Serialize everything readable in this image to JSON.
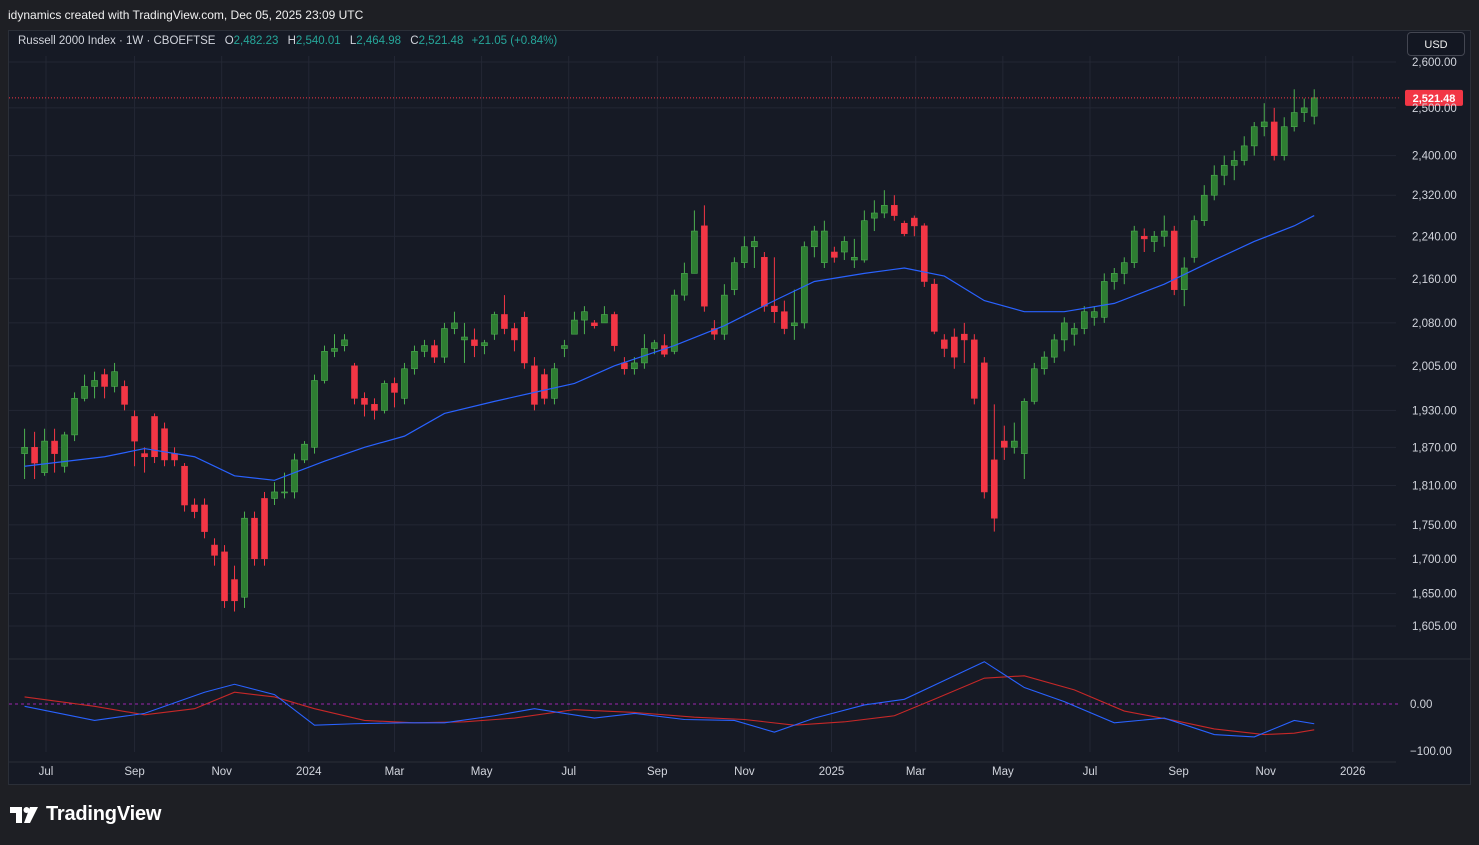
{
  "header": {
    "attribution": "idynamics created with TradingView.com, Dec 05, 2025 23:09 UTC"
  },
  "legend": {
    "symbol": "Russell 2000 Index · 1W · CBOEFTSE",
    "o_label": "O",
    "o": "2,482.23",
    "h_label": "H",
    "h": "2,540.01",
    "l_label": "L",
    "l": "2,464.98",
    "c_label": "C",
    "c": "2,521.48",
    "change": "+21.05 (+0.84%)"
  },
  "currency_button": "USD",
  "last_price_label": "2,521.48",
  "logo_text": "TradingView",
  "colors": {
    "background": "#161a25",
    "up": "#2e7d32",
    "down": "#f23645",
    "ma": "#2962ff",
    "osc_fast": "#2962ff",
    "osc_slow": "#c62828",
    "price_line": "#f23645",
    "text": "#d1d4dc"
  },
  "chart_data": {
    "type": "candlestick",
    "interval": "1W",
    "y_axis": {
      "scale": "log",
      "ticks": [
        "2,600.00",
        "2,500.00",
        "2,400.00",
        "2,320.00",
        "2,240.00",
        "2,160.00",
        "2,080.00",
        "2,005.00",
        "1,930.00",
        "1,870.00",
        "1,810.00",
        "1,750.00",
        "1,700.00",
        "1,650.00",
        "1,605.00"
      ]
    },
    "x_axis": {
      "ticks": [
        "Jul",
        "Sep",
        "Nov",
        "2024",
        "Mar",
        "May",
        "Jul",
        "Sep",
        "Nov",
        "2025",
        "Mar",
        "May",
        "Jul",
        "Sep",
        "Nov",
        "2026"
      ]
    },
    "oscillator": {
      "ticks": [
        "0.00",
        "−100.00"
      ]
    },
    "candles": [
      {
        "date": "2023-06-16",
        "o": 1860,
        "h": 1900,
        "l": 1820,
        "c": 1870
      },
      {
        "date": "2023-06-23",
        "o": 1870,
        "h": 1895,
        "l": 1820,
        "c": 1845
      },
      {
        "date": "2023-06-30",
        "o": 1830,
        "h": 1900,
        "l": 1825,
        "c": 1880
      },
      {
        "date": "2023-07-07",
        "o": 1880,
        "h": 1900,
        "l": 1830,
        "c": 1860
      },
      {
        "date": "2023-07-14",
        "o": 1840,
        "h": 1895,
        "l": 1830,
        "c": 1890
      },
      {
        "date": "2023-07-21",
        "o": 1890,
        "h": 1960,
        "l": 1880,
        "c": 1950
      },
      {
        "date": "2023-07-28",
        "o": 1950,
        "h": 1990,
        "l": 1945,
        "c": 1970
      },
      {
        "date": "2023-08-04",
        "o": 1970,
        "h": 1995,
        "l": 1950,
        "c": 1980
      },
      {
        "date": "2023-08-11",
        "o": 1990,
        "h": 2000,
        "l": 1950,
        "c": 1970
      },
      {
        "date": "2023-08-18",
        "o": 1970,
        "h": 2010,
        "l": 1960,
        "c": 1995
      },
      {
        "date": "2023-08-25",
        "o": 1970,
        "h": 1980,
        "l": 1930,
        "c": 1940
      },
      {
        "date": "2023-09-01",
        "o": 1920,
        "h": 1930,
        "l": 1840,
        "c": 1880
      },
      {
        "date": "2023-09-08",
        "o": 1860,
        "h": 1870,
        "l": 1830,
        "c": 1855
      },
      {
        "date": "2023-09-15",
        "o": 1920,
        "h": 1925,
        "l": 1845,
        "c": 1855
      },
      {
        "date": "2023-09-22",
        "o": 1900,
        "h": 1910,
        "l": 1840,
        "c": 1850
      },
      {
        "date": "2023-09-29",
        "o": 1860,
        "h": 1870,
        "l": 1840,
        "c": 1850
      },
      {
        "date": "2023-10-06",
        "o": 1840,
        "h": 1845,
        "l": 1770,
        "c": 1780
      },
      {
        "date": "2023-10-13",
        "o": 1780,
        "h": 1790,
        "l": 1760,
        "c": 1770
      },
      {
        "date": "2023-10-20",
        "o": 1780,
        "h": 1790,
        "l": 1730,
        "c": 1740
      },
      {
        "date": "2023-10-27",
        "o": 1720,
        "h": 1730,
        "l": 1690,
        "c": 1705
      },
      {
        "date": "2023-11-03",
        "o": 1710,
        "h": 1720,
        "l": 1630,
        "c": 1640
      },
      {
        "date": "2023-11-10",
        "o": 1670,
        "h": 1690,
        "l": 1625,
        "c": 1640
      },
      {
        "date": "2023-11-17",
        "o": 1645,
        "h": 1770,
        "l": 1630,
        "c": 1760
      },
      {
        "date": "2023-11-24",
        "o": 1760,
        "h": 1770,
        "l": 1690,
        "c": 1700
      },
      {
        "date": "2023-12-01",
        "o": 1790,
        "h": 1800,
        "l": 1690,
        "c": 1700
      },
      {
        "date": "2023-12-08",
        "o": 1790,
        "h": 1815,
        "l": 1780,
        "c": 1800
      },
      {
        "date": "2023-12-15",
        "o": 1800,
        "h": 1830,
        "l": 1790,
        "c": 1800
      },
      {
        "date": "2023-12-22",
        "o": 1800,
        "h": 1860,
        "l": 1790,
        "c": 1850
      },
      {
        "date": "2023-12-29",
        "o": 1850,
        "h": 1880,
        "l": 1845,
        "c": 1875
      },
      {
        "date": "2024-01-05",
        "o": 1870,
        "h": 1990,
        "l": 1860,
        "c": 1980
      },
      {
        "date": "2024-01-12",
        "o": 1980,
        "h": 2040,
        "l": 1975,
        "c": 2030
      },
      {
        "date": "2024-01-19",
        "o": 2030,
        "h": 2060,
        "l": 2020,
        "c": 2035
      },
      {
        "date": "2024-01-26",
        "o": 2040,
        "h": 2060,
        "l": 2030,
        "c": 2050
      },
      {
        "date": "2024-02-02",
        "o": 2005,
        "h": 2010,
        "l": 1940,
        "c": 1950
      },
      {
        "date": "2024-02-09",
        "o": 1950,
        "h": 1960,
        "l": 1920,
        "c": 1940
      },
      {
        "date": "2024-02-16",
        "o": 1940,
        "h": 1950,
        "l": 1915,
        "c": 1930
      },
      {
        "date": "2024-02-23",
        "o": 1930,
        "h": 1980,
        "l": 1925,
        "c": 1975
      },
      {
        "date": "2024-03-01",
        "o": 1975,
        "h": 1985,
        "l": 1935,
        "c": 1960
      },
      {
        "date": "2024-03-08",
        "o": 1950,
        "h": 2010,
        "l": 1940,
        "c": 2000
      },
      {
        "date": "2024-03-15",
        "o": 2000,
        "h": 2040,
        "l": 1990,
        "c": 2030
      },
      {
        "date": "2024-03-22",
        "o": 2030,
        "h": 2050,
        "l": 2020,
        "c": 2040
      },
      {
        "date": "2024-03-29",
        "o": 2040,
        "h": 2050,
        "l": 2010,
        "c": 2020
      },
      {
        "date": "2024-04-05",
        "o": 2020,
        "h": 2080,
        "l": 2010,
        "c": 2070
      },
      {
        "date": "2024-04-12",
        "o": 2070,
        "h": 2100,
        "l": 2060,
        "c": 2080
      },
      {
        "date": "2024-04-19",
        "o": 2050,
        "h": 2080,
        "l": 2010,
        "c": 2055
      },
      {
        "date": "2024-04-26",
        "o": 2050,
        "h": 2070,
        "l": 2020,
        "c": 2040
      },
      {
        "date": "2024-05-03",
        "o": 2040,
        "h": 2050,
        "l": 2025,
        "c": 2045
      },
      {
        "date": "2024-05-10",
        "o": 2060,
        "h": 2100,
        "l": 2050,
        "c": 2095
      },
      {
        "date": "2024-05-17",
        "o": 2095,
        "h": 2130,
        "l": 2060,
        "c": 2070
      },
      {
        "date": "2024-05-24",
        "o": 2070,
        "h": 2080,
        "l": 2030,
        "c": 2050
      },
      {
        "date": "2024-05-31",
        "o": 2090,
        "h": 2100,
        "l": 2000,
        "c": 2010
      },
      {
        "date": "2024-06-07",
        "o": 2005,
        "h": 2020,
        "l": 1930,
        "c": 1940
      },
      {
        "date": "2024-06-14",
        "o": 1990,
        "h": 2000,
        "l": 1940,
        "c": 1950
      },
      {
        "date": "2024-06-21",
        "o": 1950,
        "h": 2010,
        "l": 1940,
        "c": 2000
      },
      {
        "date": "2024-06-28",
        "o": 2035,
        "h": 2050,
        "l": 2020,
        "c": 2040
      },
      {
        "date": "2024-07-05",
        "o": 2060,
        "h": 2100,
        "l": 2060,
        "c": 2085
      },
      {
        "date": "2024-07-12",
        "o": 2085,
        "h": 2110,
        "l": 2060,
        "c": 2100
      },
      {
        "date": "2024-07-19",
        "o": 2080,
        "h": 2085,
        "l": 2070,
        "c": 2075
      },
      {
        "date": "2024-07-26",
        "o": 2080,
        "h": 2110,
        "l": 2080,
        "c": 2095
      },
      {
        "date": "2024-08-02",
        "o": 2095,
        "h": 2100,
        "l": 2030,
        "c": 2040
      },
      {
        "date": "2024-08-09",
        "o": 2010,
        "h": 2020,
        "l": 1990,
        "c": 2000
      },
      {
        "date": "2024-08-16",
        "o": 2000,
        "h": 2020,
        "l": 1990,
        "c": 2010
      },
      {
        "date": "2024-08-23",
        "o": 2010,
        "h": 2060,
        "l": 2000,
        "c": 2035
      },
      {
        "date": "2024-08-30",
        "o": 2035,
        "h": 2050,
        "l": 2025,
        "c": 2045
      },
      {
        "date": "2024-09-06",
        "o": 2040,
        "h": 2060,
        "l": 2020,
        "c": 2025
      },
      {
        "date": "2024-09-13",
        "o": 2030,
        "h": 2140,
        "l": 2025,
        "c": 2130
      },
      {
        "date": "2024-09-20",
        "o": 2130,
        "h": 2190,
        "l": 2120,
        "c": 2170
      },
      {
        "date": "2024-09-27",
        "o": 2170,
        "h": 2290,
        "l": 2170,
        "c": 2250
      },
      {
        "date": "2024-10-04",
        "o": 2260,
        "h": 2300,
        "l": 2100,
        "c": 2110
      },
      {
        "date": "2024-10-11",
        "o": 2070,
        "h": 2085,
        "l": 2050,
        "c": 2060
      },
      {
        "date": "2024-10-18",
        "o": 2060,
        "h": 2150,
        "l": 2050,
        "c": 2130
      },
      {
        "date": "2024-10-25",
        "o": 2140,
        "h": 2200,
        "l": 2130,
        "c": 2190
      },
      {
        "date": "2024-11-01",
        "o": 2190,
        "h": 2240,
        "l": 2180,
        "c": 2220
      },
      {
        "date": "2024-11-08",
        "o": 2220,
        "h": 2240,
        "l": 2180,
        "c": 2230
      },
      {
        "date": "2024-11-15",
        "o": 2200,
        "h": 2210,
        "l": 2100,
        "c": 2110
      },
      {
        "date": "2024-11-22",
        "o": 2110,
        "h": 2200,
        "l": 2080,
        "c": 2100
      },
      {
        "date": "2024-11-29",
        "o": 2100,
        "h": 2120,
        "l": 2060,
        "c": 2070
      },
      {
        "date": "2024-12-06",
        "o": 2075,
        "h": 2140,
        "l": 2050,
        "c": 2080
      },
      {
        "date": "2024-12-13",
        "o": 2080,
        "h": 2230,
        "l": 2070,
        "c": 2220
      },
      {
        "date": "2024-12-20",
        "o": 2220,
        "h": 2260,
        "l": 2200,
        "c": 2250
      },
      {
        "date": "2024-12-27",
        "o": 2190,
        "h": 2270,
        "l": 2180,
        "c": 2250
      },
      {
        "date": "2025-01-03",
        "o": 2210,
        "h": 2220,
        "l": 2190,
        "c": 2200
      },
      {
        "date": "2025-01-10",
        "o": 2210,
        "h": 2240,
        "l": 2195,
        "c": 2230
      },
      {
        "date": "2025-01-17",
        "o": 2195,
        "h": 2235,
        "l": 2180,
        "c": 2200
      },
      {
        "date": "2025-01-24",
        "o": 2195,
        "h": 2290,
        "l": 2190,
        "c": 2270
      },
      {
        "date": "2025-01-31",
        "o": 2275,
        "h": 2310,
        "l": 2250,
        "c": 2285
      },
      {
        "date": "2025-02-07",
        "o": 2285,
        "h": 2330,
        "l": 2275,
        "c": 2300
      },
      {
        "date": "2025-02-14",
        "o": 2300,
        "h": 2320,
        "l": 2270,
        "c": 2280
      },
      {
        "date": "2025-02-21",
        "o": 2265,
        "h": 2270,
        "l": 2240,
        "c": 2245
      },
      {
        "date": "2025-02-28",
        "o": 2275,
        "h": 2280,
        "l": 2240,
        "c": 2260
      },
      {
        "date": "2025-03-07",
        "o": 2260,
        "h": 2265,
        "l": 2145,
        "c": 2155
      },
      {
        "date": "2025-03-14",
        "o": 2150,
        "h": 2160,
        "l": 2060,
        "c": 2065
      },
      {
        "date": "2025-03-21",
        "o": 2050,
        "h": 2060,
        "l": 2020,
        "c": 2035
      },
      {
        "date": "2025-03-28",
        "o": 2055,
        "h": 2070,
        "l": 2000,
        "c": 2020
      },
      {
        "date": "2025-04-04",
        "o": 2060,
        "h": 2080,
        "l": 2010,
        "c": 2050
      },
      {
        "date": "2025-04-11",
        "o": 2050,
        "h": 2060,
        "l": 1940,
        "c": 1950
      },
      {
        "date": "2025-04-18",
        "o": 2010,
        "h": 2020,
        "l": 1790,
        "c": 1800
      },
      {
        "date": "2025-04-25",
        "o": 1850,
        "h": 1940,
        "l": 1740,
        "c": 1760
      },
      {
        "date": "2025-05-02",
        "o": 1880,
        "h": 1905,
        "l": 1850,
        "c": 1870
      },
      {
        "date": "2025-05-09",
        "o": 1870,
        "h": 1910,
        "l": 1860,
        "c": 1880
      },
      {
        "date": "2025-05-16",
        "o": 1860,
        "h": 1950,
        "l": 1820,
        "c": 1945
      },
      {
        "date": "2025-05-23",
        "o": 1945,
        "h": 2010,
        "l": 1940,
        "c": 2000
      },
      {
        "date": "2025-05-30",
        "o": 2000,
        "h": 2030,
        "l": 1990,
        "c": 2020
      },
      {
        "date": "2025-06-06",
        "o": 2020,
        "h": 2060,
        "l": 2010,
        "c": 2050
      },
      {
        "date": "2025-06-13",
        "o": 2050,
        "h": 2090,
        "l": 2030,
        "c": 2080
      },
      {
        "date": "2025-06-20",
        "o": 2060,
        "h": 2080,
        "l": 2040,
        "c": 2070
      },
      {
        "date": "2025-06-27",
        "o": 2070,
        "h": 2110,
        "l": 2060,
        "c": 2100
      },
      {
        "date": "2025-07-04",
        "o": 2090,
        "h": 2110,
        "l": 2075,
        "c": 2100
      },
      {
        "date": "2025-07-11",
        "o": 2090,
        "h": 2170,
        "l": 2080,
        "c": 2155
      },
      {
        "date": "2025-07-18",
        "o": 2155,
        "h": 2180,
        "l": 2140,
        "c": 2170
      },
      {
        "date": "2025-07-25",
        "o": 2170,
        "h": 2200,
        "l": 2150,
        "c": 2190
      },
      {
        "date": "2025-08-01",
        "o": 2190,
        "h": 2260,
        "l": 2180,
        "c": 2250
      },
      {
        "date": "2025-08-08",
        "o": 2240,
        "h": 2255,
        "l": 2210,
        "c": 2235
      },
      {
        "date": "2025-08-15",
        "o": 2230,
        "h": 2250,
        "l": 2210,
        "c": 2240
      },
      {
        "date": "2025-08-22",
        "o": 2240,
        "h": 2280,
        "l": 2220,
        "c": 2250
      },
      {
        "date": "2025-08-29",
        "o": 2250,
        "h": 2260,
        "l": 2130,
        "c": 2140
      },
      {
        "date": "2025-09-05",
        "o": 2140,
        "h": 2200,
        "l": 2110,
        "c": 2180
      },
      {
        "date": "2025-09-12",
        "o": 2200,
        "h": 2280,
        "l": 2190,
        "c": 2270
      },
      {
        "date": "2025-09-19",
        "o": 2270,
        "h": 2340,
        "l": 2260,
        "c": 2320
      },
      {
        "date": "2025-09-26",
        "o": 2320,
        "h": 2380,
        "l": 2310,
        "c": 2360
      },
      {
        "date": "2025-10-03",
        "o": 2360,
        "h": 2400,
        "l": 2340,
        "c": 2380
      },
      {
        "date": "2025-10-10",
        "o": 2380,
        "h": 2410,
        "l": 2350,
        "c": 2390
      },
      {
        "date": "2025-10-17",
        "o": 2390,
        "h": 2440,
        "l": 2380,
        "c": 2420
      },
      {
        "date": "2025-10-24",
        "o": 2420,
        "h": 2470,
        "l": 2400,
        "c": 2460
      },
      {
        "date": "2025-10-31",
        "o": 2460,
        "h": 2510,
        "l": 2440,
        "c": 2470
      },
      {
        "date": "2025-11-07",
        "o": 2470,
        "h": 2500,
        "l": 2390,
        "c": 2400
      },
      {
        "date": "2025-11-14",
        "o": 2400,
        "h": 2480,
        "l": 2390,
        "c": 2460
      },
      {
        "date": "2025-11-21",
        "o": 2460,
        "h": 2540,
        "l": 2450,
        "c": 2490
      },
      {
        "date": "2025-11-28",
        "o": 2490,
        "h": 2520,
        "l": 2470,
        "c": 2500
      },
      {
        "date": "2025-12-05",
        "o": 2482.23,
        "h": 2540.01,
        "l": 2464.98,
        "c": 2521.48
      }
    ],
    "ma_line": [
      {
        "date": "2023-06-16",
        "v": 1840
      },
      {
        "date": "2023-08-11",
        "v": 1855
      },
      {
        "date": "2023-09-08",
        "v": 1868
      },
      {
        "date": "2023-10-13",
        "v": 1855
      },
      {
        "date": "2023-11-10",
        "v": 1825
      },
      {
        "date": "2023-12-08",
        "v": 1818
      },
      {
        "date": "2024-01-12",
        "v": 1848
      },
      {
        "date": "2024-02-09",
        "v": 1870
      },
      {
        "date": "2024-03-08",
        "v": 1888
      },
      {
        "date": "2024-04-05",
        "v": 1925
      },
      {
        "date": "2024-05-10",
        "v": 1945
      },
      {
        "date": "2024-06-07",
        "v": 1960
      },
      {
        "date": "2024-07-05",
        "v": 1975
      },
      {
        "date": "2024-08-02",
        "v": 2005
      },
      {
        "date": "2024-09-13",
        "v": 2040
      },
      {
        "date": "2024-10-18",
        "v": 2075
      },
      {
        "date": "2024-11-22",
        "v": 2120
      },
      {
        "date": "2024-12-20",
        "v": 2155
      },
      {
        "date": "2025-01-24",
        "v": 2170
      },
      {
        "date": "2025-02-21",
        "v": 2180
      },
      {
        "date": "2025-03-21",
        "v": 2165
      },
      {
        "date": "2025-04-18",
        "v": 2120
      },
      {
        "date": "2025-05-16",
        "v": 2100
      },
      {
        "date": "2025-06-13",
        "v": 2100
      },
      {
        "date": "2025-07-18",
        "v": 2115
      },
      {
        "date": "2025-08-22",
        "v": 2150
      },
      {
        "date": "2025-09-26",
        "v": 2195
      },
      {
        "date": "2025-10-24",
        "v": 2230
      },
      {
        "date": "2025-11-21",
        "v": 2260
      },
      {
        "date": "2025-12-05",
        "v": 2280
      }
    ]
  }
}
